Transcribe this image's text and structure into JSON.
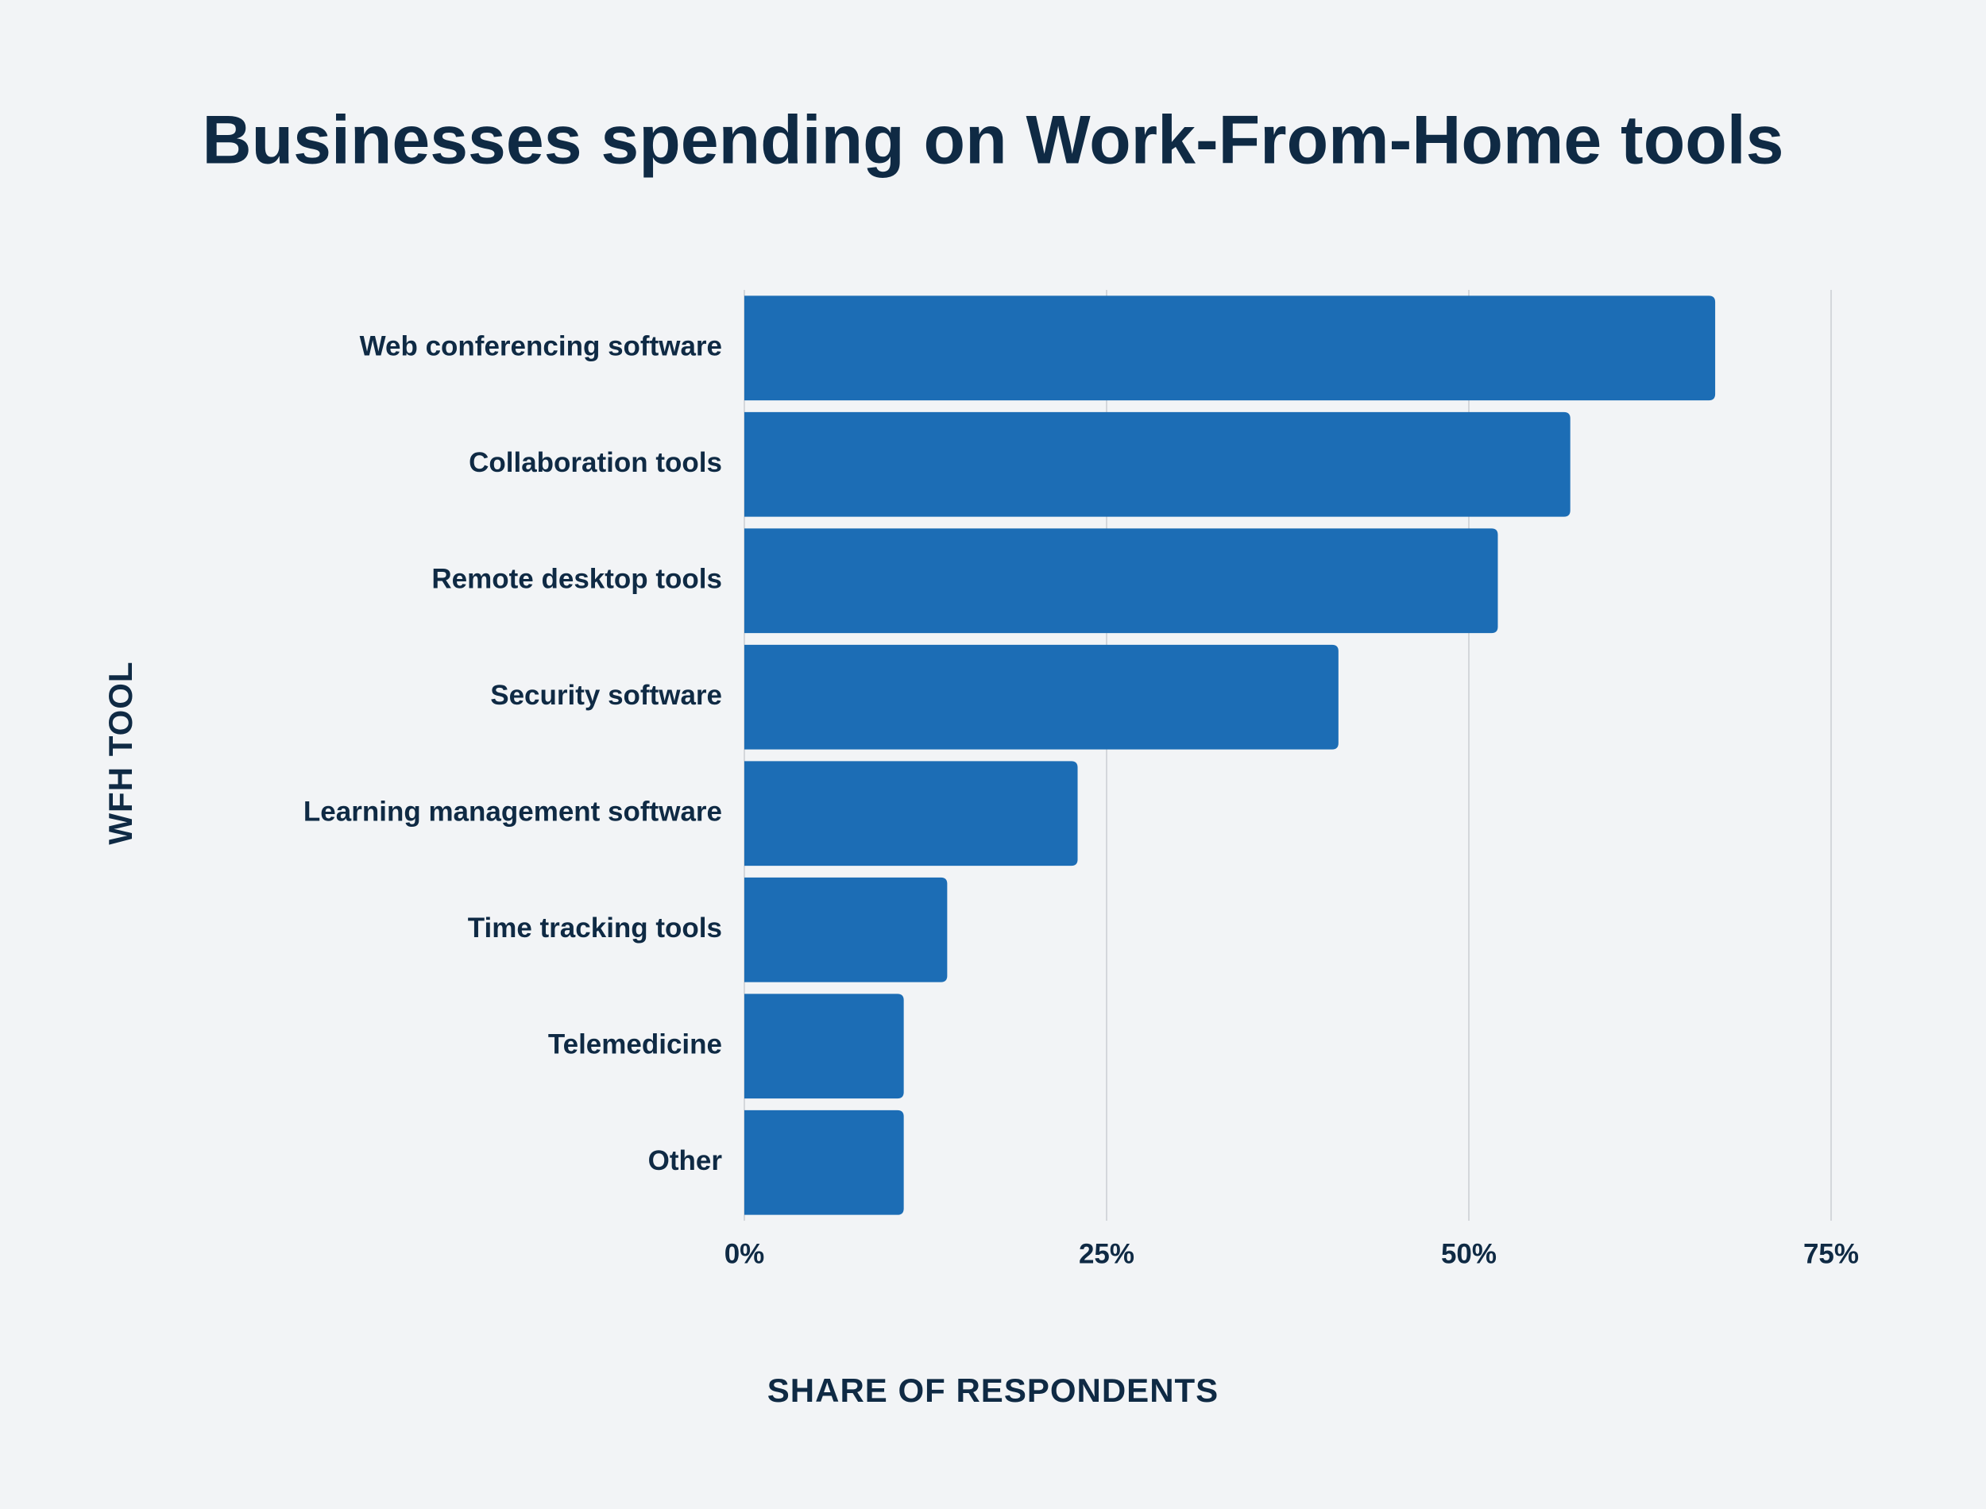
{
  "chart_data": {
    "type": "bar",
    "orientation": "horizontal",
    "title": "Businesses spending on Work-From-Home tools",
    "x_label": "SHARE OF RESPONDENTS",
    "y_label": "WFH TOOL",
    "categories": [
      "Web conferencing software",
      "Collaboration tools",
      "Remote desktop tools",
      "Security software",
      "Learning management software",
      "Time tracking tools",
      "Telemedicine",
      "Other"
    ],
    "values": [
      67,
      57,
      52,
      41,
      23,
      14,
      11,
      11
    ],
    "color": "#1c6db5",
    "xlim": [
      0,
      75
    ],
    "xticks": [
      {
        "value": 0,
        "label": "0%"
      },
      {
        "value": 25,
        "label": "25%"
      },
      {
        "value": 50,
        "label": "50%"
      },
      {
        "value": 75,
        "label": "75%"
      }
    ],
    "grid": true
  }
}
